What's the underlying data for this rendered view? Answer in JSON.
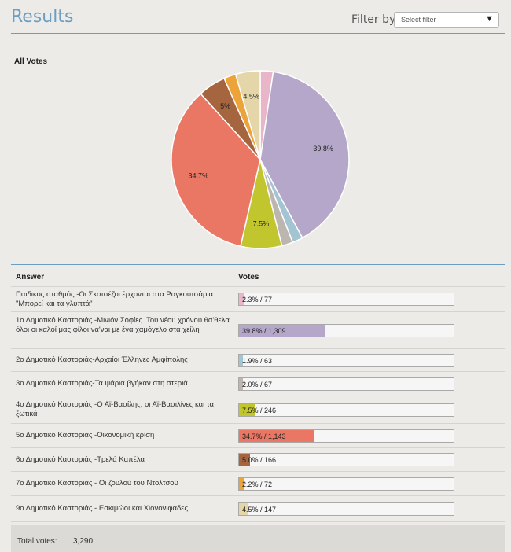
{
  "header": {
    "title": "Results",
    "filter_label": "Filter by:",
    "filter_value": "Select filter"
  },
  "table": {
    "col_answer": "Answer",
    "col_votes": "Votes"
  },
  "footer": {
    "total_label": "Total votes:",
    "total_value": "3,290"
  },
  "chart_data": {
    "type": "pie",
    "title": "All Votes",
    "total": 3290,
    "slices": [
      {
        "label": "Παιδικός σταθμός -Οι Σκοτσέζοι έρχονται στα Ραγκουτσάρια \"Μπορεί και τα γλυπτά\"",
        "votes": 77,
        "percent": 2.3,
        "display": "2.3% / 77",
        "color": "#e8b5c9"
      },
      {
        "label": "1ο Δημοτικό Καστοριάς -Μινιόν Σοφίες. Του νέου χρόνου θα'θελα όλοι οι καλοί μας φίλοι να'ναι με ένα χαμόγελο στα χείλη",
        "votes": 1309,
        "percent": 39.8,
        "display": "39.8% / 1,309",
        "color": "#b4a7c9"
      },
      {
        "label": "2ο Δημοτικό Καστοριάς-Αρχαίοι Έλληνες Αμφίπολης",
        "votes": 63,
        "percent": 1.9,
        "display": "1.9% / 63",
        "color": "#a3c4d2"
      },
      {
        "label": "3ο Δημοτικό Καστοριάς-Τα ψάρια βγήκαν στη στεριά",
        "votes": 67,
        "percent": 2.0,
        "display": "2.0% / 67",
        "color": "#bdb6b0"
      },
      {
        "label": "4ο Δημοτικό Καστοριάς -Ο Αϊ-Βασίλης, οι Αϊ-Βασιλίνες και τα ξωτικά",
        "votes": 246,
        "percent": 7.5,
        "display": "7.5% / 246",
        "color": "#c2c62e"
      },
      {
        "label": "5ο Δημοτικό Καστοριάς -Οικονομική κρίση",
        "votes": 1143,
        "percent": 34.7,
        "display": "34.7% / 1,143",
        "color": "#ea7764"
      },
      {
        "label": "6ο Δημοτικό Καστοριάς -Τρελά Καπέλα",
        "votes": 166,
        "percent": 5.0,
        "display": "5.0% / 166",
        "color": "#a5663f"
      },
      {
        "label": "7ο Δημοτικό Καστοριάς - Οι ζουλού του Ντολτσού",
        "votes": 72,
        "percent": 2.2,
        "display": "2.2% / 72",
        "color": "#eca43a"
      },
      {
        "label": "9ο Δημοτικό Καστοριάς - Εσκιμώοι και Χιονονιφάδες",
        "votes": 147,
        "percent": 4.5,
        "display": "4.5% / 147",
        "color": "#e5d6a9"
      }
    ]
  }
}
